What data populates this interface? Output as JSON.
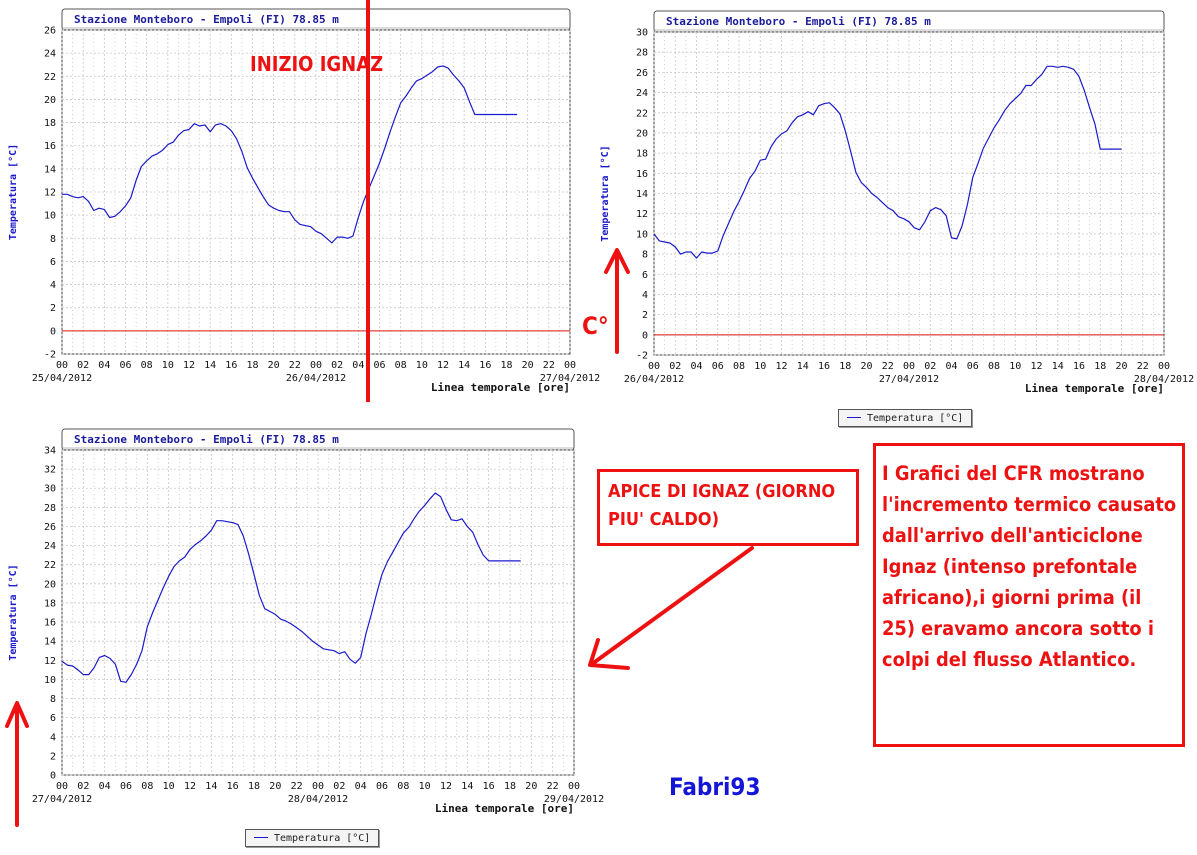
{
  "charts": [
    {
      "title": "Stazione Monteboro - Empoli (FI) 78.85 m",
      "ylabel": "Temperatura [°C]",
      "xlabel": "Linea temporale [ore]",
      "hour_ticks": [
        "00",
        "02",
        "04",
        "06",
        "08",
        "10",
        "12",
        "14",
        "16",
        "18",
        "20",
        "22",
        "00",
        "02",
        "04",
        "06",
        "08",
        "10",
        "12",
        "14",
        "16",
        "18",
        "20",
        "22",
        "00"
      ],
      "dates": [
        "25/04/2012",
        "26/04/2012",
        "27/04/2012"
      ],
      "legend": ""
    },
    {
      "title": "Stazione Monteboro - Empoli (FI) 78.85 m",
      "ylabel": "Temperatura [°C]",
      "xlabel": "Linea temporale [ore]",
      "hour_ticks": [
        "00",
        "02",
        "04",
        "06",
        "08",
        "10",
        "12",
        "14",
        "16",
        "18",
        "20",
        "22",
        "00",
        "02",
        "04",
        "06",
        "08",
        "10",
        "12",
        "14",
        "16",
        "18",
        "20",
        "22",
        "00"
      ],
      "dates": [
        "26/04/2012",
        "27/04/2012",
        "28/04/2012"
      ],
      "legend": "Temperatura [°C]"
    },
    {
      "title": "Stazione Monteboro - Empoli (FI) 78.85 m",
      "ylabel": "Temperatura [°C]",
      "xlabel": "Linea temporale [ore]",
      "hour_ticks": [
        "00",
        "02",
        "04",
        "06",
        "08",
        "10",
        "12",
        "14",
        "16",
        "18",
        "20",
        "22",
        "00",
        "02",
        "04",
        "06",
        "08",
        "10",
        "12",
        "14",
        "16",
        "18",
        "20",
        "22",
        "00"
      ],
      "dates": [
        "27/04/2012",
        "28/04/2012",
        "29/04/2012"
      ],
      "legend": "Temperatura [°C]"
    }
  ],
  "chart_data": [
    {
      "type": "line",
      "title": "Stazione Monteboro - Empoli (FI) 78.85 m",
      "xlabel": "Linea temporale [ore]",
      "ylabel": "Temperatura [°C]",
      "ylim": [
        -2,
        26
      ],
      "y_ticks": [
        -2,
        0,
        2,
        4,
        6,
        8,
        10,
        12,
        14,
        16,
        18,
        20,
        22,
        24,
        26
      ],
      "xlim_hours": [
        0,
        48
      ],
      "grid": true,
      "series": [
        {
          "name": "Temperatura [°C]",
          "x": [
            0,
            0.5,
            1,
            1.5,
            2,
            2.5,
            3,
            3.5,
            4,
            4.5,
            5,
            5.5,
            6,
            6.5,
            7,
            7.5,
            8,
            8.5,
            9,
            9.5,
            10,
            10.5,
            11,
            11.5,
            12,
            12.5,
            13,
            13.5,
            14,
            14.5,
            15,
            15.5,
            16,
            16.5,
            17,
            17.5,
            18,
            18.5,
            19,
            19.5,
            20,
            20.5,
            21,
            21.5,
            22,
            22.5,
            23,
            23.5,
            24,
            24.5,
            25,
            25.5,
            26,
            26.5,
            27,
            27.5,
            28,
            28.5,
            29,
            29.5,
            30,
            30.5,
            31,
            31.5,
            32,
            32.5,
            33,
            33.5,
            34,
            34.5,
            35,
            35.5,
            36,
            36.5,
            37,
            37.5,
            38,
            38.5,
            39,
            39.5,
            40,
            40.5,
            41,
            41.5,
            42,
            42.5,
            43
          ],
          "values": [
            11.8,
            11.8,
            11.6,
            11.5,
            11.6,
            11.2,
            10.4,
            10.6,
            10.5,
            9.8,
            9.9,
            10.3,
            10.8,
            11.5,
            13,
            14.2,
            14.7,
            15.1,
            15.3,
            15.6,
            16.1,
            16.3,
            16.9,
            17.3,
            17.4,
            17.9,
            17.7,
            17.8,
            17.2,
            17.8,
            17.9,
            17.7,
            17.3,
            16.6,
            15.5,
            14.1,
            13.2,
            12.4,
            11.6,
            10.9,
            10.6,
            10.4,
            10.3,
            10.3,
            9.6,
            9.2,
            9.1,
            9,
            8.6,
            8.4,
            8,
            7.6,
            8.1,
            8.1,
            8,
            8.2,
            9.8,
            11.2,
            12.3,
            13.4,
            14.5,
            15.8,
            17.2,
            18.5,
            19.7,
            20.3,
            21,
            21.6,
            21.8,
            22.1,
            22.4,
            22.8,
            22.9,
            22.7,
            22.1,
            21.6,
            21,
            19.8,
            18.7,
            18.7,
            18.7,
            18.7,
            18.7,
            18.7,
            18.7,
            18.7,
            18.7
          ]
        }
      ]
    },
    {
      "type": "line",
      "title": "Stazione Monteboro - Empoli (FI) 78.85 m",
      "xlabel": "Linea temporale [ore]",
      "ylabel": "Temperatura [°C]",
      "ylim": [
        -2,
        30
      ],
      "y_ticks": [
        -2,
        0,
        2,
        4,
        6,
        8,
        10,
        12,
        14,
        16,
        18,
        20,
        22,
        24,
        26,
        28,
        30
      ],
      "xlim_hours": [
        0,
        48
      ],
      "grid": true,
      "series": [
        {
          "name": "Temperatura [°C]",
          "x": [
            0,
            0.5,
            1,
            1.5,
            2,
            2.5,
            3,
            3.5,
            4,
            4.5,
            5,
            5.5,
            6,
            6.5,
            7,
            7.5,
            8,
            8.5,
            9,
            9.5,
            10,
            10.5,
            11,
            11.5,
            12,
            12.5,
            13,
            13.5,
            14,
            14.5,
            15,
            15.5,
            16,
            16.5,
            17,
            17.5,
            18,
            18.5,
            19,
            19.5,
            20,
            20.5,
            21,
            21.5,
            22,
            22.5,
            23,
            23.5,
            24,
            24.5,
            25,
            25.5,
            26,
            26.5,
            27,
            27.5,
            28,
            28.5,
            29,
            29.5,
            30,
            30.5,
            31,
            31.5,
            32,
            32.5,
            33,
            33.5,
            34,
            34.5,
            35,
            35.5,
            36,
            36.5,
            37,
            37.5,
            38,
            38.5,
            39,
            39.5,
            40,
            40.5,
            41,
            41.5,
            42,
            42.5,
            43,
            43.5,
            44
          ],
          "values": [
            10,
            9.3,
            9.2,
            9.1,
            8.7,
            8,
            8.2,
            8.2,
            7.6,
            8.2,
            8.1,
            8.1,
            8.3,
            9.8,
            11,
            12.2,
            13.2,
            14.3,
            15.5,
            16.2,
            17.3,
            17.4,
            18.6,
            19.4,
            19.9,
            20.2,
            21,
            21.6,
            21.8,
            22.1,
            21.8,
            22.7,
            22.9,
            23,
            22.5,
            21.9,
            20.2,
            18.2,
            16.1,
            15.1,
            14.6,
            14,
            13.6,
            13.1,
            12.6,
            12.3,
            11.7,
            11.5,
            11.2,
            10.6,
            10.4,
            11.2,
            12.3,
            12.6,
            12.4,
            11.8,
            9.6,
            9.5,
            10.8,
            12.9,
            15.6,
            17,
            18.5,
            19.5,
            20.5,
            21.3,
            22.2,
            22.9,
            23.4,
            23.9,
            24.7,
            24.7,
            25.3,
            25.8,
            26.6,
            26.6,
            26.5,
            26.6,
            26.5,
            26.3,
            25.6,
            24.2,
            22.5,
            20.9,
            18.4,
            18.4,
            18.4,
            18.4,
            18.4
          ]
        }
      ]
    },
    {
      "type": "line",
      "title": "Stazione Monteboro - Empoli (FI) 78.85 m",
      "xlabel": "Linea temporale [ore]",
      "ylabel": "Temperatura [°C]",
      "ylim": [
        0,
        34
      ],
      "y_ticks": [
        0,
        2,
        4,
        6,
        8,
        10,
        12,
        14,
        16,
        18,
        20,
        22,
        24,
        26,
        28,
        30,
        32,
        34
      ],
      "xlim_hours": [
        0,
        48
      ],
      "grid": true,
      "series": [
        {
          "name": "Temperatura [°C]",
          "x": [
            0,
            0.5,
            1,
            1.5,
            2,
            2.5,
            3,
            3.5,
            4,
            4.5,
            5,
            5.5,
            6,
            6.5,
            7,
            7.5,
            8,
            8.5,
            9,
            9.5,
            10,
            10.5,
            11,
            11.5,
            12,
            12.5,
            13,
            13.5,
            14,
            14.5,
            15,
            15.5,
            16,
            16.5,
            17,
            17.5,
            18,
            18.5,
            19,
            19.5,
            20,
            20.5,
            21,
            21.5,
            22,
            22.5,
            23,
            23.5,
            24,
            24.5,
            25,
            25.5,
            26,
            26.5,
            27,
            27.5,
            28,
            28.5,
            29,
            29.5,
            30,
            30.5,
            31,
            31.5,
            32,
            32.5,
            33,
            33.5,
            34,
            34.5,
            35,
            35.5,
            36,
            36.5,
            37,
            37.5,
            38,
            38.5,
            39,
            39.5,
            40,
            40.5,
            41,
            41.5,
            42,
            42.5,
            43
          ],
          "values": [
            11.9,
            11.5,
            11.4,
            11,
            10.5,
            10.5,
            11.2,
            12.3,
            12.5,
            12.2,
            11.6,
            9.8,
            9.7,
            10.5,
            11.6,
            13,
            15.5,
            17,
            18.3,
            19.6,
            20.8,
            21.8,
            22.4,
            22.8,
            23.6,
            24.1,
            24.5,
            25,
            25.6,
            26.6,
            26.6,
            26.5,
            26.4,
            26.2,
            25,
            23.1,
            21,
            18.8,
            17.4,
            17.1,
            16.8,
            16.3,
            16.1,
            15.8,
            15.4,
            15,
            14.5,
            14,
            13.6,
            13.2,
            13.1,
            13,
            12.7,
            12.9,
            12.1,
            11.7,
            12.3,
            14.8,
            16.8,
            19,
            21,
            22.3,
            23.3,
            24.3,
            25.3,
            25.9,
            26.8,
            27.6,
            28.2,
            28.9,
            29.5,
            29.1,
            27.8,
            26.7,
            26.6,
            26.8,
            26,
            25.4,
            24.1,
            23,
            22.4,
            22.4,
            22.4,
            22.4,
            22.4,
            22.4,
            22.4
          ]
        }
      ]
    }
  ],
  "annotations": {
    "inizio": "INIZIO IGNAZ",
    "degree_label": "C°",
    "apex_text": "APICE DI IGNAZ (GIORNO PIU' CALDO)",
    "note_lines": [
      "I Grafici del CFR mostrano",
      "l'incremento termico causato",
      "dall'arrivo dell'anticiclone",
      "Ignaz (intenso prefontale",
      "africano),i giorni prima (il",
      "25) eravamo ancora sotto i",
      "colpi del flusso Atlantico."
    ],
    "credit": "Fabri93"
  },
  "colors": {
    "series": "#1a1acc",
    "zero_line": "#dd1111",
    "annotation": "#ee1111",
    "credit": "#1515d8",
    "grid": "#c8c8c8",
    "title_bar": "#ffffff"
  }
}
